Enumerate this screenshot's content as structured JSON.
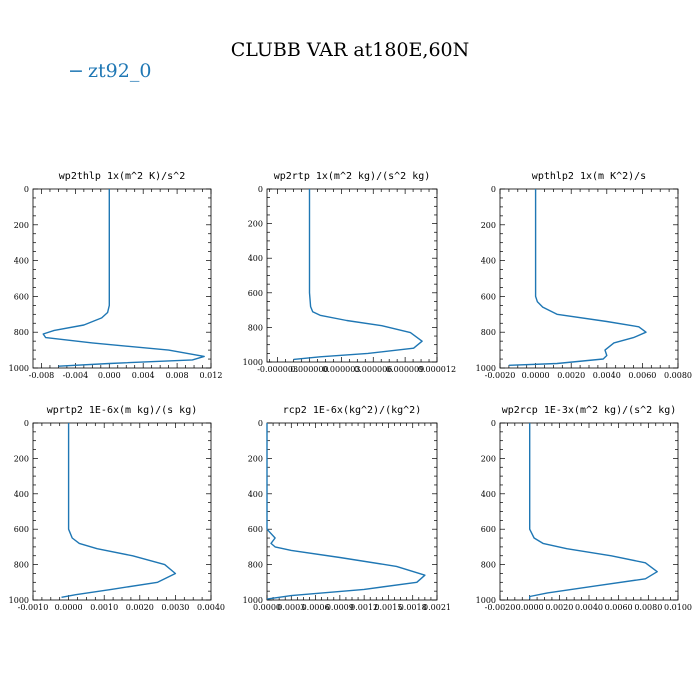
{
  "title": "CLUBB VAR at180E,60N",
  "legend": {
    "label": "zt92_0",
    "marker": "−",
    "color": "#1f77b4"
  },
  "chart_data": [
    {
      "type": "line",
      "title": "wp2thlp   1x(m^2 K)/s^2",
      "xlim": [
        -0.009,
        0.012
      ],
      "ylim": [
        1000,
        0
      ],
      "xticks": [
        -0.008,
        -0.004,
        0.0,
        0.004,
        0.008,
        0.012
      ],
      "xtick_labels": [
        "-0.008",
        "-0.004",
        "0.000",
        "0.004",
        "0.008",
        "0.012"
      ],
      "yticks": [
        0,
        200,
        400,
        600,
        800,
        1000
      ],
      "ytick_labels": [
        "0",
        "200",
        "400",
        "600",
        "800",
        "1000"
      ],
      "series": [
        {
          "name": "zt92_0",
          "x": [
            0.0,
            0.0,
            0.0,
            0.0,
            0.0,
            -0.0002,
            -0.0009,
            -0.003,
            -0.0065,
            -0.0078,
            -0.0075,
            -0.002,
            0.007,
            0.0112,
            0.0098,
            0.0,
            -0.006
          ],
          "y": [
            0,
            200,
            400,
            600,
            650,
            690,
            720,
            760,
            790,
            810,
            830,
            860,
            900,
            935,
            955,
            975,
            990
          ]
        }
      ]
    },
    {
      "type": "line",
      "title": "wp2rtp   1x(m^2 kg)/(s^2 kg)",
      "xlim": [
        -4e-06,
        1.2e-05
      ],
      "ylim": [
        1000,
        0
      ],
      "xticks": [
        -3e-06,
        0.0,
        3e-06,
        6e-06,
        9e-06,
        1.2e-05
      ],
      "xtick_labels": [
        "-0.000003",
        "0.000000",
        "0.000003",
        "0.000006",
        "0.000009",
        "0.000012"
      ],
      "yticks": [
        0,
        200,
        400,
        600,
        800,
        1000
      ],
      "ytick_labels": [
        "0",
        "200",
        "400",
        "600",
        "800",
        "1000"
      ],
      "series": [
        {
          "name": "zt92_0",
          "x": [
            0.0,
            0.0,
            0.0,
            0.0,
            1e-07,
            3e-07,
            1e-06,
            3.5e-06,
            6.8e-06,
            9.5e-06,
            1.06e-05,
            9.8e-06,
            5.5e-06,
            1e-06,
            -1.5e-06
          ],
          "y": [
            0,
            200,
            400,
            600,
            680,
            710,
            730,
            760,
            790,
            830,
            880,
            920,
            950,
            970,
            985
          ]
        }
      ]
    },
    {
      "type": "line",
      "title": "wpthlp2   1x(m K^2)/s",
      "xlim": [
        -0.002,
        0.008
      ],
      "ylim": [
        1000,
        0
      ],
      "xticks": [
        -0.002,
        0.0,
        0.002,
        0.004,
        0.006,
        0.008
      ],
      "xtick_labels": [
        "-0.0020",
        "0.0000",
        "0.0020",
        "0.0040",
        "0.0060",
        "0.0080"
      ],
      "yticks": [
        0,
        200,
        400,
        600,
        800,
        1000
      ],
      "ytick_labels": [
        "0",
        "200",
        "400",
        "600",
        "800",
        "1000"
      ],
      "series": [
        {
          "name": "zt92_0",
          "x": [
            0.0,
            0.0,
            0.0,
            0.0,
            0.0001,
            0.0004,
            0.0012,
            0.004,
            0.0058,
            0.0062,
            0.0055,
            0.0044,
            0.0039,
            0.004,
            0.0038,
            0.0012,
            -0.0015
          ],
          "y": [
            0,
            200,
            400,
            600,
            630,
            660,
            700,
            740,
            770,
            800,
            830,
            860,
            900,
            930,
            950,
            975,
            985
          ]
        }
      ]
    },
    {
      "type": "line",
      "title": "wprtp2   1E-6x(m kg)/(s kg)",
      "xlim": [
        -0.001,
        0.004
      ],
      "ylim": [
        1000,
        0
      ],
      "xticks": [
        -0.001,
        0.0,
        0.001,
        0.002,
        0.003,
        0.004
      ],
      "xtick_labels": [
        "-0.0010",
        "0.0000",
        "0.0010",
        "0.0020",
        "0.0030",
        "0.0040"
      ],
      "yticks": [
        0,
        200,
        400,
        600,
        800,
        1000
      ],
      "ytick_labels": [
        "0",
        "200",
        "400",
        "600",
        "800",
        "1000"
      ],
      "series": [
        {
          "name": "zt92_0",
          "x": [
            0.0,
            0.0,
            0.0,
            0.0,
            0.0001,
            0.0003,
            0.0008,
            0.0018,
            0.0027,
            0.003,
            0.0025,
            0.0012,
            0.0002,
            -0.0002
          ],
          "y": [
            0,
            200,
            400,
            600,
            650,
            680,
            710,
            750,
            800,
            850,
            900,
            940,
            970,
            985
          ]
        }
      ]
    },
    {
      "type": "line",
      "title": "rcp2   1E-6x(kg^2)/(kg^2)",
      "xlim": [
        0.0,
        0.0021
      ],
      "ylim": [
        1000,
        0
      ],
      "xticks": [
        0.0,
        0.0003,
        0.0006,
        0.0009,
        0.0012,
        0.0015,
        0.0018,
        0.0021
      ],
      "xtick_labels": [
        "0.0000",
        "0.0003",
        "0.0006",
        "0.0009",
        "0.0012",
        "0.0015",
        "0.0018",
        "0.0021"
      ],
      "yticks": [
        0,
        200,
        400,
        600,
        800,
        1000
      ],
      "ytick_labels": [
        "0",
        "200",
        "400",
        "600",
        "800",
        "1000"
      ],
      "series": [
        {
          "name": "zt92_0",
          "x": [
            0.0,
            0.0,
            0.0,
            0.0,
            0.0001,
            5e-05,
            0.0001,
            0.0003,
            0.0009,
            0.0016,
            0.00195,
            0.00185,
            0.0012,
            0.0003,
            0.0
          ],
          "y": [
            0,
            200,
            400,
            600,
            650,
            680,
            700,
            720,
            760,
            810,
            860,
            900,
            940,
            975,
            995
          ]
        }
      ]
    },
    {
      "type": "line",
      "title": "wp2rcp   1E-3x(m^2 kg)/(s^2 kg)",
      "xlim": [
        -0.002,
        0.01
      ],
      "ylim": [
        1000,
        0
      ],
      "xticks": [
        -0.002,
        0.0,
        0.002,
        0.004,
        0.006,
        0.008,
        0.01
      ],
      "xtick_labels": [
        "-0.0020",
        "0.0000",
        "0.0020",
        "0.0040",
        "0.0060",
        "0.0080",
        "0.0100"
      ],
      "yticks": [
        0,
        200,
        400,
        600,
        800,
        1000
      ],
      "ytick_labels": [
        "0",
        "200",
        "400",
        "600",
        "800",
        "1000"
      ],
      "series": [
        {
          "name": "zt92_0",
          "x": [
            0.0,
            0.0,
            0.0,
            0.0,
            0.0003,
            0.0009,
            0.0025,
            0.0055,
            0.0078,
            0.0086,
            0.0078,
            0.0045,
            0.0012,
            0.0,
            0.0
          ],
          "y": [
            0,
            200,
            400,
            600,
            650,
            680,
            710,
            750,
            790,
            840,
            880,
            920,
            960,
            980,
            995
          ]
        }
      ]
    }
  ]
}
